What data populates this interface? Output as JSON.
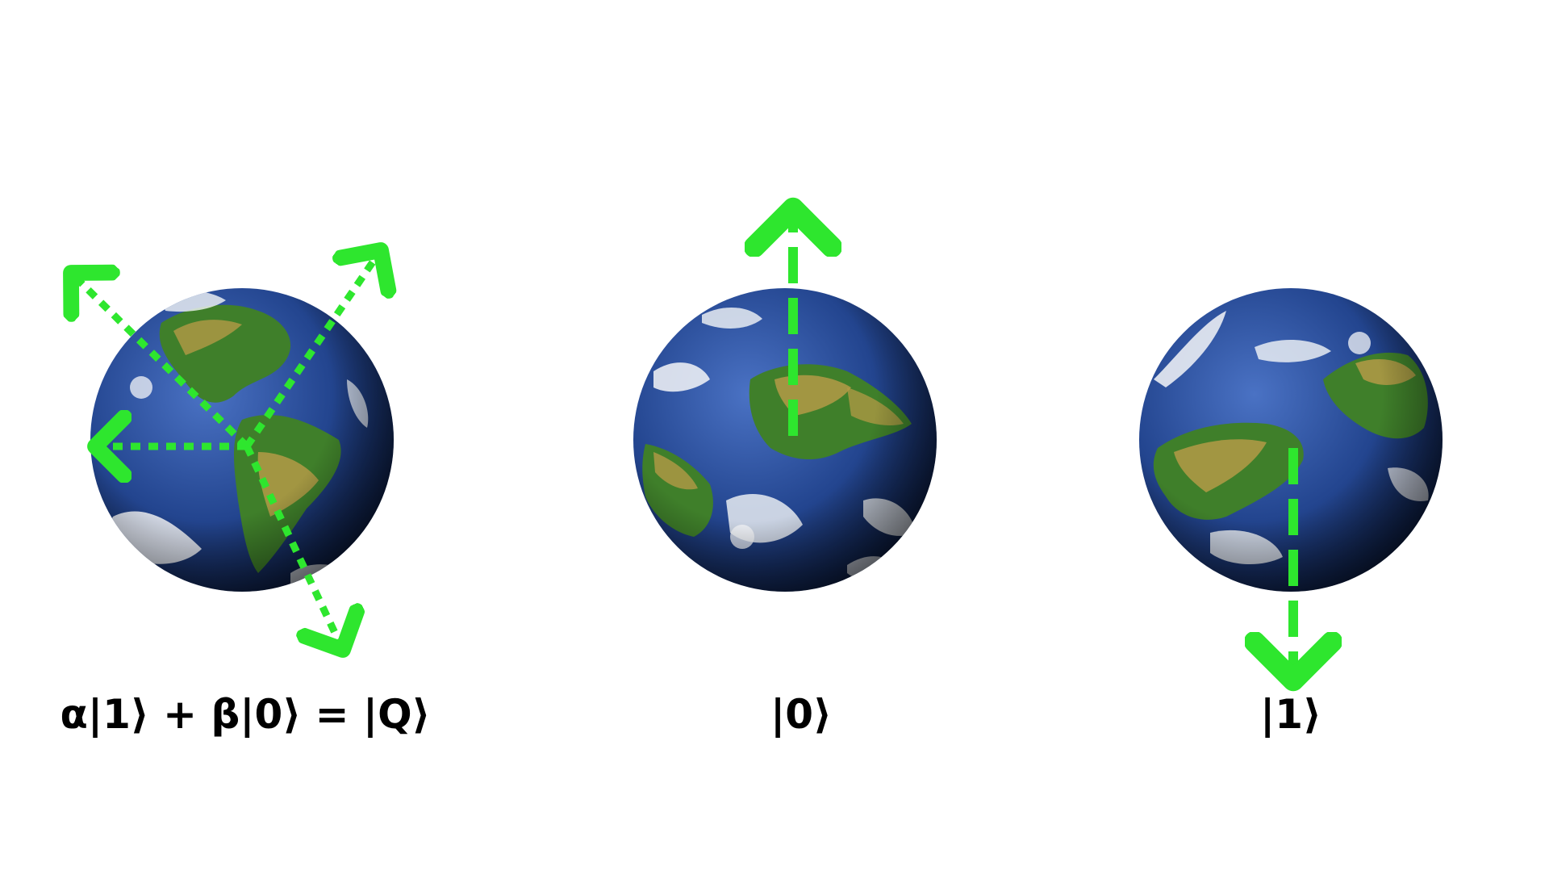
{
  "diagram": {
    "description_labels": {
      "superposition": "α|1⟩ + β|0⟩ = |Q⟩",
      "state_zero": "|0⟩",
      "state_one": "|1⟩"
    },
    "colors": {
      "arrow": "#2ee62e",
      "ocean_light": "#3f66b8",
      "ocean_dark": "#0b1a45",
      "land_green": "#3f7f2a",
      "land_tan": "#b49a46",
      "cloud": "#f4f6f8",
      "text": "#000000"
    },
    "icons": {
      "globe": "earth-globe-icon",
      "arrow": "spin-arrow-icon"
    }
  }
}
